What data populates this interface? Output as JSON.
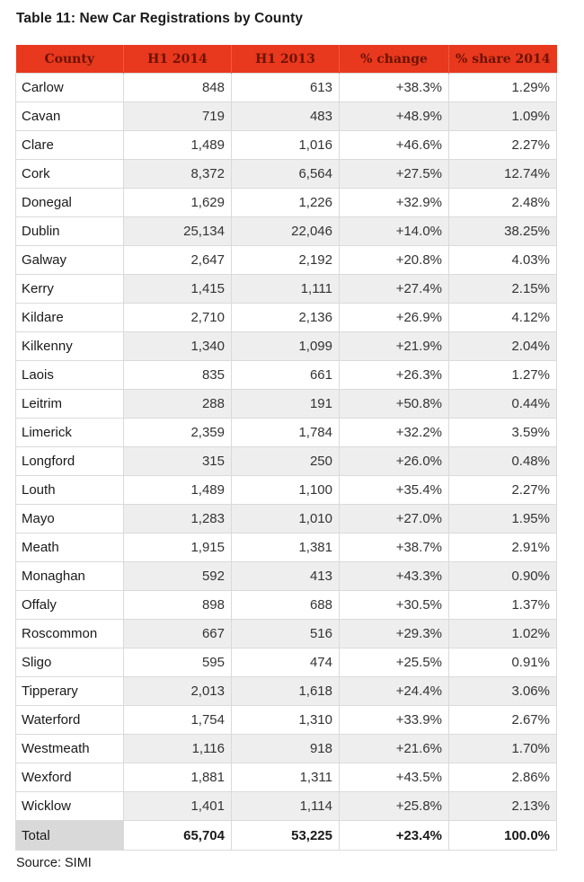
{
  "title": "Table 11: New Car Registrations by County",
  "columns": [
    "County",
    "H1 2014",
    "H1 2013",
    "% change",
    "% share 2014"
  ],
  "rows": [
    {
      "county": "Carlow",
      "h1_2014": "848",
      "h1_2013": "613",
      "change": "+38.3%",
      "share": "1.29%"
    },
    {
      "county": "Cavan",
      "h1_2014": "719",
      "h1_2013": "483",
      "change": "+48.9%",
      "share": "1.09%"
    },
    {
      "county": "Clare",
      "h1_2014": "1,489",
      "h1_2013": "1,016",
      "change": "+46.6%",
      "share": "2.27%"
    },
    {
      "county": "Cork",
      "h1_2014": "8,372",
      "h1_2013": "6,564",
      "change": "+27.5%",
      "share": "12.74%"
    },
    {
      "county": "Donegal",
      "h1_2014": "1,629",
      "h1_2013": "1,226",
      "change": "+32.9%",
      "share": "2.48%"
    },
    {
      "county": "Dublin",
      "h1_2014": "25,134",
      "h1_2013": "22,046",
      "change": "+14.0%",
      "share": "38.25%"
    },
    {
      "county": "Galway",
      "h1_2014": "2,647",
      "h1_2013": "2,192",
      "change": "+20.8%",
      "share": "4.03%"
    },
    {
      "county": "Kerry",
      "h1_2014": "1,415",
      "h1_2013": "1,111",
      "change": "+27.4%",
      "share": "2.15%"
    },
    {
      "county": "Kildare",
      "h1_2014": "2,710",
      "h1_2013": "2,136",
      "change": "+26.9%",
      "share": "4.12%"
    },
    {
      "county": "Kilkenny",
      "h1_2014": "1,340",
      "h1_2013": "1,099",
      "change": "+21.9%",
      "share": "2.04%"
    },
    {
      "county": "Laois",
      "h1_2014": "835",
      "h1_2013": "661",
      "change": "+26.3%",
      "share": "1.27%"
    },
    {
      "county": "Leitrim",
      "h1_2014": "288",
      "h1_2013": "191",
      "change": "+50.8%",
      "share": "0.44%"
    },
    {
      "county": "Limerick",
      "h1_2014": "2,359",
      "h1_2013": "1,784",
      "change": "+32.2%",
      "share": "3.59%"
    },
    {
      "county": "Longford",
      "h1_2014": "315",
      "h1_2013": "250",
      "change": "+26.0%",
      "share": "0.48%"
    },
    {
      "county": "Louth",
      "h1_2014": "1,489",
      "h1_2013": "1,100",
      "change": "+35.4%",
      "share": "2.27%"
    },
    {
      "county": "Mayo",
      "h1_2014": "1,283",
      "h1_2013": "1,010",
      "change": "+27.0%",
      "share": "1.95%"
    },
    {
      "county": "Meath",
      "h1_2014": "1,915",
      "h1_2013": "1,381",
      "change": "+38.7%",
      "share": "2.91%"
    },
    {
      "county": "Monaghan",
      "h1_2014": "592",
      "h1_2013": "413",
      "change": "+43.3%",
      "share": "0.90%"
    },
    {
      "county": "Offaly",
      "h1_2014": "898",
      "h1_2013": "688",
      "change": "+30.5%",
      "share": "1.37%"
    },
    {
      "county": "Roscommon",
      "h1_2014": "667",
      "h1_2013": "516",
      "change": "+29.3%",
      "share": "1.02%"
    },
    {
      "county": "Sligo",
      "h1_2014": "595",
      "h1_2013": "474",
      "change": "+25.5%",
      "share": "0.91%"
    },
    {
      "county": "Tipperary",
      "h1_2014": "2,013",
      "h1_2013": "1,618",
      "change": "+24.4%",
      "share": "3.06%"
    },
    {
      "county": "Waterford",
      "h1_2014": "1,754",
      "h1_2013": "1,310",
      "change": "+33.9%",
      "share": "2.67%"
    },
    {
      "county": "Westmeath",
      "h1_2014": "1,116",
      "h1_2013": "918",
      "change": "+21.6%",
      "share": "1.70%"
    },
    {
      "county": "Wexford",
      "h1_2014": "1,881",
      "h1_2013": "1,311",
      "change": "+43.5%",
      "share": "2.86%"
    },
    {
      "county": "Wicklow",
      "h1_2014": "1,401",
      "h1_2013": "1,114",
      "change": "+25.8%",
      "share": "2.13%"
    }
  ],
  "total": {
    "county": "Total",
    "h1_2014": "65,704",
    "h1_2013": "53,225",
    "change": "+23.4%",
    "share": "100.0%"
  },
  "source": "Source: SIMI",
  "colors": {
    "header_background": "#e8381d",
    "header_text": "#6b1305",
    "stripe": "#eeeeee",
    "total_label_background": "#d9d9d9"
  }
}
